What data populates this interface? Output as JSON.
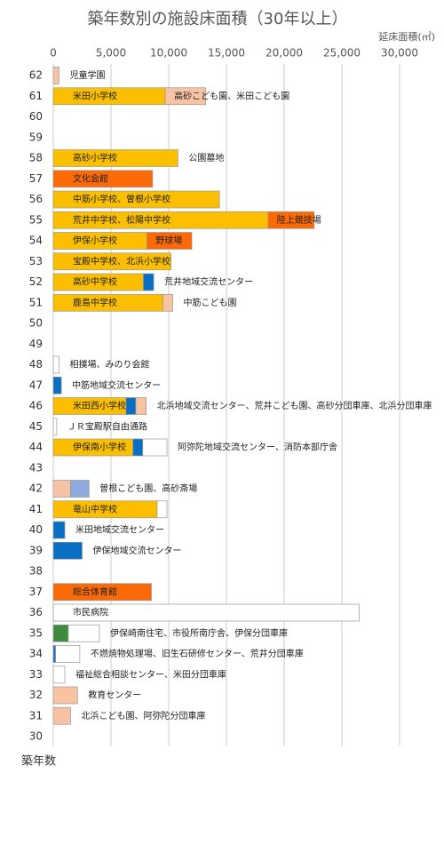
{
  "chart_data": {
    "type": "stacked-hbar",
    "title": "築年数別の施設床面積（30年以上）",
    "x_label": "延床面積(㎡)",
    "y_label": "築年数",
    "xlim": [
      0,
      33000
    ],
    "xticks": [
      0,
      {
        "value": 5000,
        "label": "5,000"
      },
      {
        "value": 10000,
        "label": "10,000"
      },
      {
        "value": 15000,
        "label": "15,000"
      },
      {
        "value": 20000,
        "label": "20,000"
      },
      {
        "value": 25000,
        "label": "25,000"
      },
      {
        "value": 30000,
        "label": "30,000"
      }
    ],
    "grid": true,
    "categories": [
      "62",
      "61",
      "60",
      "59",
      "58",
      "57",
      "56",
      "55",
      "54",
      "53",
      "52",
      "51",
      "50",
      "49",
      "48",
      "47",
      "46",
      "45",
      "44",
      "43",
      "42",
      "41",
      "40",
      "39",
      "38",
      "37",
      "36",
      "35",
      "34",
      "33",
      "32",
      "31",
      "30"
    ],
    "rows": [
      {
        "segments": [
          {
            "value": 500,
            "color": "#f7c3a3"
          }
        ],
        "note": "児童学園"
      },
      {
        "segments": [
          {
            "value": 9700,
            "color": "#fbbf00",
            "label": "米田小学校"
          },
          {
            "value": 3500,
            "color": "#f7c3a3",
            "label": "高砂こども園、米田こども園"
          }
        ]
      },
      {
        "segments": []
      },
      {
        "segments": []
      },
      {
        "segments": [
          {
            "value": 10800,
            "color": "#fbbf00",
            "label": "高砂小学校"
          }
        ],
        "note": "公園墓地"
      },
      {
        "segments": [
          {
            "value": 8600,
            "color": "#fb6a06",
            "label": "文化会館"
          }
        ]
      },
      {
        "segments": [
          {
            "value": 14400,
            "color": "#fbbf00",
            "label": "中筋小学校、曽根小学校"
          }
        ]
      },
      {
        "segments": [
          {
            "value": 18600,
            "color": "#fbbf00",
            "label": "荒井中学校、松陽中学校"
          },
          {
            "value": 4000,
            "color": "#fb6a06",
            "label": "陸上競技場"
          }
        ]
      },
      {
        "segments": [
          {
            "value": 8100,
            "color": "#fbbf00",
            "label": "伊保小学校"
          },
          {
            "value": 3900,
            "color": "#fb6a06",
            "label": "野球場"
          }
        ]
      },
      {
        "segments": [
          {
            "value": 10200,
            "color": "#fbbf00",
            "label": "宝殿中学校、北浜小学校"
          }
        ]
      },
      {
        "segments": [
          {
            "value": 7800,
            "color": "#fbbf00",
            "label": "高砂中学校"
          },
          {
            "value": 900,
            "color": "#0a6fc2"
          }
        ],
        "note": "荒井地域交流センター"
      },
      {
        "segments": [
          {
            "value": 9500,
            "color": "#fbbf00",
            "label": "鹿島中学校"
          },
          {
            "value": 850,
            "color": "#f7c3a3"
          }
        ],
        "note": "中筋こども園"
      },
      {
        "segments": []
      },
      {
        "segments": []
      },
      {
        "segments": [
          {
            "value": 500,
            "color": "#ffffff"
          }
        ],
        "note": "相撲場、みのり会館"
      },
      {
        "segments": [
          {
            "value": 700,
            "color": "#0a6fc2"
          }
        ],
        "note": "中筋地域交流センター"
      },
      {
        "segments": [
          {
            "value": 6300,
            "color": "#fbbf00",
            "label": "米田西小学校"
          },
          {
            "value": 850,
            "color": "#0a6fc2"
          },
          {
            "value": 900,
            "color": "#f7c3a3"
          }
        ],
        "note": "北浜地域交流センター、荒井こども園、高砂分団車庫、北浜分団車庫"
      },
      {
        "segments": [
          {
            "value": 300,
            "color": "#ffffff"
          }
        ],
        "note": "ＪＲ宝殿駅自由通路"
      },
      {
        "segments": [
          {
            "value": 6900,
            "color": "#fbbf00",
            "label": "伊保南小学校"
          },
          {
            "value": 850,
            "color": "#0a6fc2"
          },
          {
            "value": 2100,
            "color": "#ffffff"
          }
        ],
        "note": "阿弥陀地域交流センター、消防本部庁舎"
      },
      {
        "segments": []
      },
      {
        "segments": [
          {
            "value": 1500,
            "color": "#f7c3a3"
          },
          {
            "value": 1600,
            "color": "#8ea9db"
          }
        ],
        "note": "曽根こども園、高砂斎場"
      },
      {
        "segments": [
          {
            "value": 9000,
            "color": "#fbbf00",
            "label": "竜山中学校"
          },
          {
            "value": 850,
            "color": "#ffffff"
          }
        ]
      },
      {
        "segments": [
          {
            "value": 1000,
            "color": "#0a6fc2"
          }
        ],
        "note": "米田地域交流センター"
      },
      {
        "segments": [
          {
            "value": 2500,
            "color": "#0a6fc2"
          }
        ],
        "note": "伊保地域交流センター"
      },
      {
        "segments": []
      },
      {
        "segments": [
          {
            "value": 8500,
            "color": "#fb6a06",
            "label": "総合体育館"
          }
        ]
      },
      {
        "segments": [
          {
            "value": 26500,
            "color": "#ffffff",
            "label": "市民病院"
          }
        ]
      },
      {
        "segments": [
          {
            "value": 1300,
            "color": "#3e8a3e"
          },
          {
            "value": 2700,
            "color": "#ffffff"
          }
        ],
        "note": "伊保崎南住宅、市役所南庁舎、伊保分団車庫"
      },
      {
        "segments": [
          {
            "value": 200,
            "color": "#0a6fc2"
          },
          {
            "value": 2100,
            "color": "#ffffff"
          }
        ],
        "note": "不燃焼物処理場、旧生石研修センター、荒井分団車庫"
      },
      {
        "segments": [
          {
            "value": 1000,
            "color": "#ffffff"
          }
        ],
        "note": "福祉総合相談センター、米田分団車庫"
      },
      {
        "segments": [
          {
            "value": 2100,
            "color": "#f7c3a3"
          }
        ],
        "note": "教育センター"
      },
      {
        "segments": [
          {
            "value": 1500,
            "color": "#f7c3a3"
          }
        ],
        "note": "北浜こども園、阿弥陀分団車庫"
      },
      {
        "segments": []
      }
    ]
  }
}
